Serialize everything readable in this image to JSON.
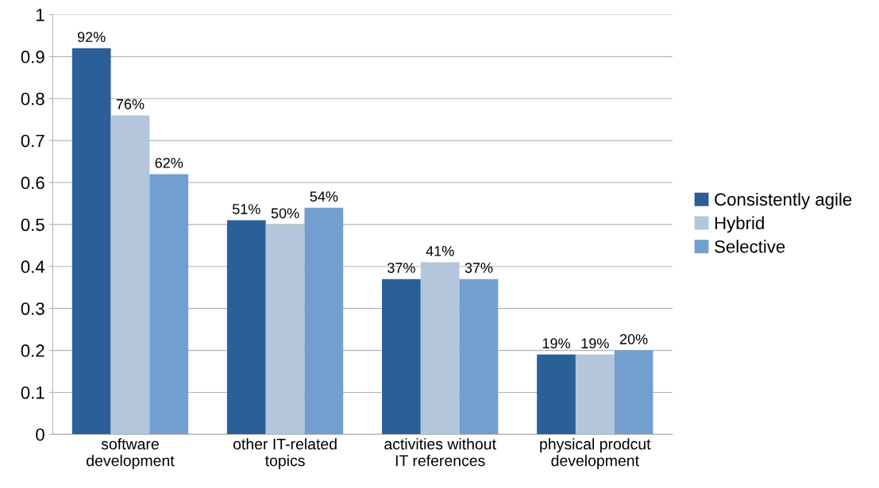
{
  "chart_data": {
    "type": "bar",
    "categories": [
      "software\ndevelopment",
      "other IT-related\ntopics",
      "activities without\nIT references",
      "physical prodcut\ndevelopment"
    ],
    "series": [
      {
        "name": "Consistently agile",
        "color": "#2b5f98",
        "values": [
          0.92,
          0.51,
          0.37,
          0.19
        ],
        "value_labels": [
          "92%",
          "51%",
          "37%",
          "19%"
        ]
      },
      {
        "name": "Hybrid",
        "color": "#b4c6dc",
        "values": [
          0.76,
          0.5,
          0.41,
          0.19
        ],
        "value_labels": [
          "76%",
          "50%",
          "41%",
          "19%"
        ]
      },
      {
        "name": "Selective",
        "color": "#729fcf",
        "values": [
          0.62,
          0.54,
          0.37,
          0.2
        ],
        "value_labels": [
          "62%",
          "54%",
          "37%",
          "20%"
        ]
      }
    ],
    "ylim": [
      0,
      1
    ],
    "yticks": [
      0,
      0.1,
      0.2,
      0.3,
      0.4,
      0.5,
      0.6,
      0.7,
      0.8,
      0.9,
      1
    ],
    "grid": "y",
    "legend": "right"
  }
}
